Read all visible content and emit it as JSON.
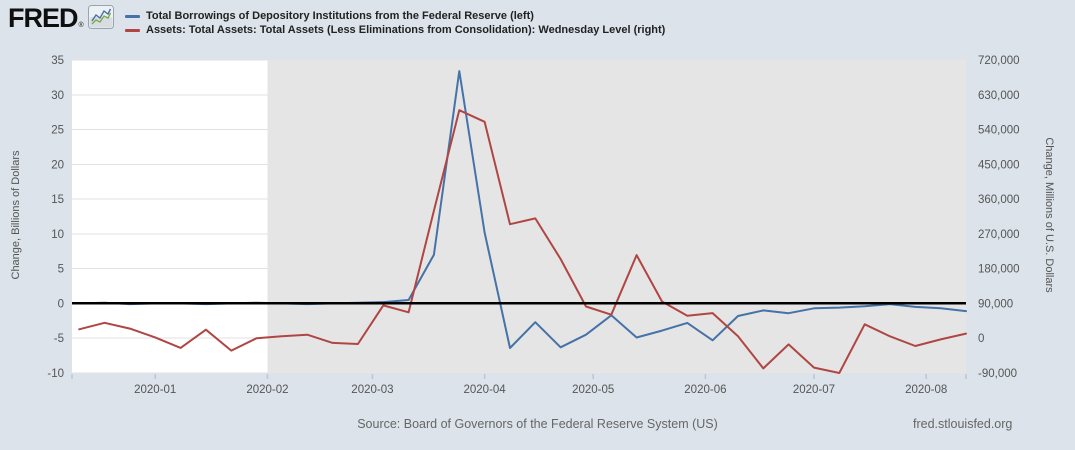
{
  "header": {
    "logo_text": "FRED",
    "logo_registered": "®",
    "legend": [
      {
        "label": "Total Borrowings of Depository Institutions from the Federal Reserve (left)",
        "color": "#4572a7"
      },
      {
        "label": "Assets: Total Assets: Total Assets (Less Eliminations from Consolidation): Wednesday Level (right)",
        "color": "#b04643"
      }
    ]
  },
  "footer": {
    "source": "Source: Board of Governors of the Federal Reserve System (US)",
    "site": "fred.stlouisfed.org"
  },
  "colors": {
    "background": "#dce3eb",
    "plot_bg": "#ffffff",
    "recession_band": "#e5e5e5",
    "gridline": "#e2e2e2",
    "zero_line": "#000000",
    "tick_text": "#555555",
    "axis_title_text": "#555555",
    "tick_mark": "#b9c7d7",
    "series_blue": "#4572a7",
    "series_red": "#b04643"
  },
  "chart_data": {
    "type": "line",
    "x": [
      "2019-12-11",
      "2019-12-18",
      "2019-12-25",
      "2020-01-01",
      "2020-01-08",
      "2020-01-15",
      "2020-01-22",
      "2020-01-29",
      "2020-02-05",
      "2020-02-12",
      "2020-02-19",
      "2020-02-26",
      "2020-03-04",
      "2020-03-11",
      "2020-03-18",
      "2020-03-25",
      "2020-04-01",
      "2020-04-08",
      "2020-04-15",
      "2020-04-22",
      "2020-04-29",
      "2020-05-06",
      "2020-05-13",
      "2020-05-20",
      "2020-05-27",
      "2020-06-03",
      "2020-06-10",
      "2020-06-17",
      "2020-06-24",
      "2020-07-01",
      "2020-07-08",
      "2020-07-15",
      "2020-07-22",
      "2020-07-29",
      "2020-08-05",
      "2020-08-12"
    ],
    "series": [
      {
        "name": "Total Borrowings of Depository Institutions from the Federal Reserve",
        "axis": "left",
        "color": "#4572a7",
        "values": [
          0,
          0.1,
          -0.1,
          0,
          0,
          -0.1,
          0,
          0.1,
          0,
          -0.1,
          0,
          0.1,
          0.2,
          0.5,
          7,
          33.4,
          10.2,
          -6.4,
          -2.7,
          -6.3,
          -4.5,
          -1.7,
          -4.9,
          -3.9,
          -2.8,
          -5.3,
          -1.8,
          -1,
          -1.4,
          -0.7,
          -0.6,
          -0.4,
          -0.1,
          -0.5,
          -0.7,
          -1.1
        ]
      },
      {
        "name": "Assets: Total Assets: Total Assets (Less Eliminations from Consolidation): Wednesday Level",
        "axis": "right",
        "color": "#b04643",
        "values": [
          23000,
          40000,
          25000,
          2000,
          -25000,
          22000,
          -32000,
          0,
          5000,
          9000,
          -12000,
          -15000,
          85000,
          67000,
          330000,
          590000,
          560000,
          295000,
          310000,
          205000,
          82000,
          61000,
          215000,
          95000,
          58000,
          65000,
          5000,
          -78000,
          -16000,
          -76000,
          -90000,
          36000,
          5000,
          -20000,
          -3000,
          12000
        ]
      }
    ],
    "left_axis": {
      "title": "Change, Billions of Dollars",
      "min": -10,
      "max": 35,
      "ticks": [
        35,
        30,
        25,
        20,
        15,
        10,
        5,
        0,
        -5,
        -10
      ]
    },
    "right_axis": {
      "title": "Change, Millions of U.S. Dollars",
      "min": -90000,
      "max": 720000,
      "ticks": [
        720000,
        630000,
        540000,
        450000,
        360000,
        270000,
        180000,
        90000,
        0,
        -90000
      ]
    },
    "x_axis": {
      "start": "2019-12-09",
      "end": "2020-08-12",
      "edge_ticks": true,
      "ticks": [
        {
          "date": "2020-01-01",
          "label": "2020-01"
        },
        {
          "date": "2020-02-01",
          "label": "2020-02"
        },
        {
          "date": "2020-03-01",
          "label": "2020-03"
        },
        {
          "date": "2020-04-01",
          "label": "2020-04"
        },
        {
          "date": "2020-05-01",
          "label": "2020-05"
        },
        {
          "date": "2020-06-01",
          "label": "2020-06"
        },
        {
          "date": "2020-07-01",
          "label": "2020-07"
        },
        {
          "date": "2020-08-01",
          "label": "2020-08"
        }
      ]
    },
    "zero_line": true,
    "shaded_region": {
      "from": "2020-02-01",
      "to": "2020-08-12"
    },
    "legend_position": "top",
    "grid": "horizontal"
  }
}
